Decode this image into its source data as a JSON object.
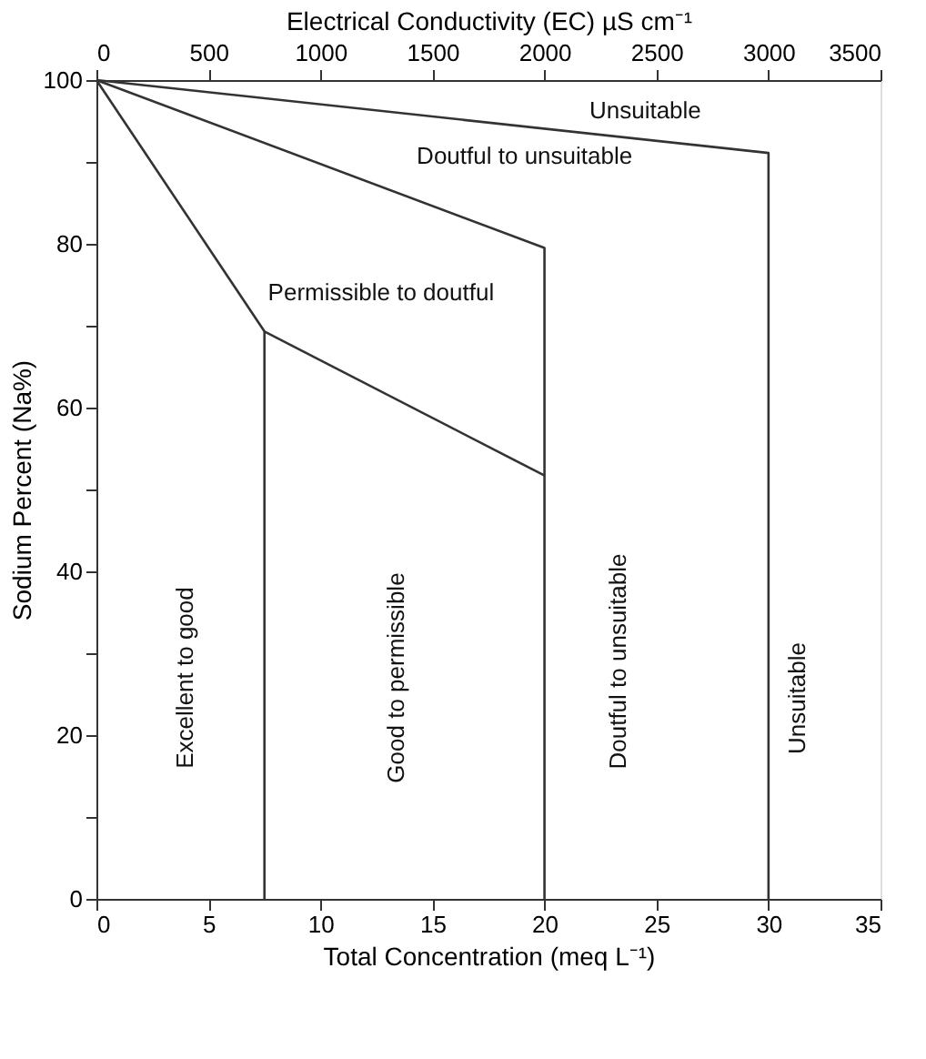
{
  "chart_data": {
    "type": "line",
    "xlabel": "Total Concentration (meq L⁻¹)",
    "ylabel": "Sodium Percent (Na%)",
    "x2label": "Electrical Conductivity (EC) µS cm⁻¹",
    "xlim": [
      0,
      35
    ],
    "xticks": [
      0,
      5,
      10,
      15,
      20,
      25,
      30,
      35
    ],
    "ylim": [
      0,
      100
    ],
    "yticks": [
      0,
      {
        "value": 10,
        "label": null
      },
      20,
      {
        "value": 30,
        "label": null
      },
      40,
      {
        "value": 50,
        "label": null
      },
      60,
      {
        "value": 70,
        "label": null
      },
      80,
      {
        "value": 90,
        "label": null
      },
      100
    ],
    "x2lim": [
      0,
      3500
    ],
    "x2ticks": [
      0,
      500,
      1000,
      1500,
      2000,
      2500,
      3000,
      3500
    ],
    "marker": "none",
    "line_style": "solid",
    "series": [
      {
        "color": "#333333",
        "x": [
          0,
          30,
          30
        ],
        "values": [
          100,
          91.1,
          0
        ]
      },
      {
        "color": "#333333",
        "x": [
          0,
          20,
          20
        ],
        "values": [
          100,
          79.5,
          0
        ]
      },
      {
        "color": "#333333",
        "x": [
          0,
          7.5,
          7.5
        ],
        "values": [
          100,
          69.3,
          0
        ]
      },
      {
        "color": "#333333",
        "x": [
          7.5,
          20
        ],
        "values": [
          69.3,
          51.7
        ]
      }
    ],
    "annotations": [
      "Unsuitable",
      "Doutful to unsuitable",
      "Permissible to doutful",
      "Excellent to good",
      "Good to permissible",
      "Doutful to unsuitable",
      "Unsuitable"
    ]
  }
}
